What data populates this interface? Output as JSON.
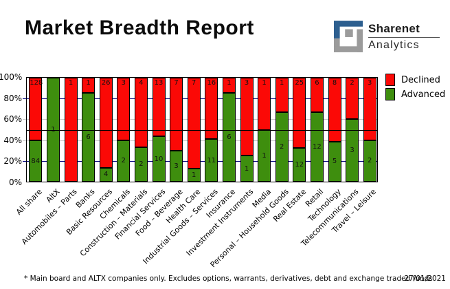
{
  "header": {
    "title": "Market Breadth Report",
    "logo": {
      "line1": "Sharenet",
      "line2": "Analytics",
      "blue": "#2d5f8f",
      "gray": "#9b9b9b"
    }
  },
  "chart_data": {
    "type": "bar",
    "stacked": true,
    "stack_mode": "percent",
    "title": "Market Breadth Report",
    "categories": [
      "All share",
      "AltX",
      "Automobiles – Parts",
      "Banks",
      "Basic Resources",
      "Chemicals",
      "Construction – Materials",
      "Financial Services",
      "Food – Beverage",
      "Health Care",
      "Industrial Goods – Services",
      "Insurance",
      "Investment Instruments",
      "Media",
      "Personal – Household Goods",
      "Real Estate",
      "Retail",
      "Technology",
      "Telecommunications",
      "Travel – Leisure"
    ],
    "series": [
      {
        "name": "Declined",
        "color": "#FB0906",
        "values": [
          128,
          0,
          1,
          1,
          26,
          3,
          4,
          13,
          7,
          7,
          16,
          1,
          3,
          1,
          1,
          25,
          6,
          8,
          2,
          3
        ]
      },
      {
        "name": "Advanced",
        "color": "#3E8E0E",
        "values": [
          84,
          1,
          0,
          6,
          4,
          2,
          2,
          10,
          3,
          1,
          11,
          6,
          1,
          1,
          2,
          12,
          12,
          5,
          3,
          2
        ]
      }
    ],
    "ylim": [
      0,
      100
    ],
    "yticks": [
      {
        "value": 100,
        "label": "100%"
      },
      {
        "value": 80,
        "label": "80%"
      },
      {
        "value": 60,
        "label": "60%"
      },
      {
        "value": 40,
        "label": "40%"
      },
      {
        "value": 20,
        "label": "20%"
      },
      {
        "value": 0,
        "label": "0%"
      }
    ],
    "gridlines": [
      {
        "value": 80,
        "color": "#00007d"
      },
      {
        "value": 60,
        "color": "#c9c9c9"
      },
      {
        "value": 40,
        "color": "#c9c9c9"
      },
      {
        "value": 20,
        "color": "#00007d"
      }
    ],
    "reference_line": {
      "value": 50,
      "color": "#000000"
    },
    "legend": [
      "Declined",
      "Advanced"
    ],
    "legend_position": "right",
    "xlabel": "",
    "ylabel": ""
  },
  "footer": {
    "note": "* Main board and ALTX companies only. Excludes options, warrants, derivatives, debt and exchange traded funds",
    "date": "27/01/2021"
  }
}
